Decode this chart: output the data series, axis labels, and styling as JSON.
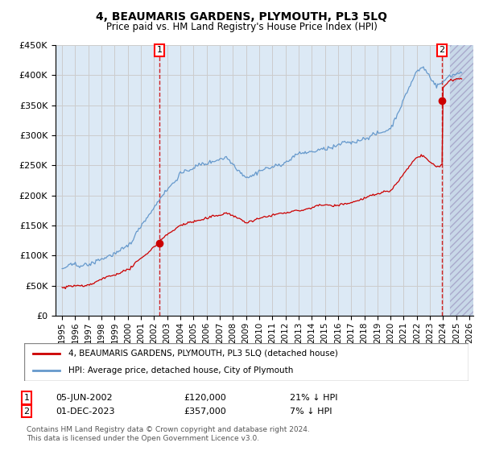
{
  "title": "4, BEAUMARIS GARDENS, PLYMOUTH, PL3 5LQ",
  "subtitle": "Price paid vs. HM Land Registry's House Price Index (HPI)",
  "sale1_date": "05-JUN-2002",
  "sale1_price": 120000,
  "sale1_label": "£120,000",
  "sale1_hpi_pct": "21% ↓ HPI",
  "sale2_date": "01-DEC-2023",
  "sale2_price": 357000,
  "sale2_label": "£357,000",
  "sale2_hpi_pct": "7% ↓ HPI",
  "legend_property": "4, BEAUMARIS GARDENS, PLYMOUTH, PL3 5LQ (detached house)",
  "legend_hpi": "HPI: Average price, detached house, City of Plymouth",
  "footer": "Contains HM Land Registry data © Crown copyright and database right 2024.\nThis data is licensed under the Open Government Licence v3.0.",
  "ylim": [
    0,
    450000
  ],
  "yticks": [
    0,
    50000,
    100000,
    150000,
    200000,
    250000,
    300000,
    350000,
    400000,
    450000
  ],
  "hpi_color": "#6699cc",
  "property_color": "#cc0000",
  "vline_color": "#cc0000",
  "grid_color": "#cccccc",
  "background_color": "#dce9f5",
  "hatch_color": "#c8d8e8"
}
